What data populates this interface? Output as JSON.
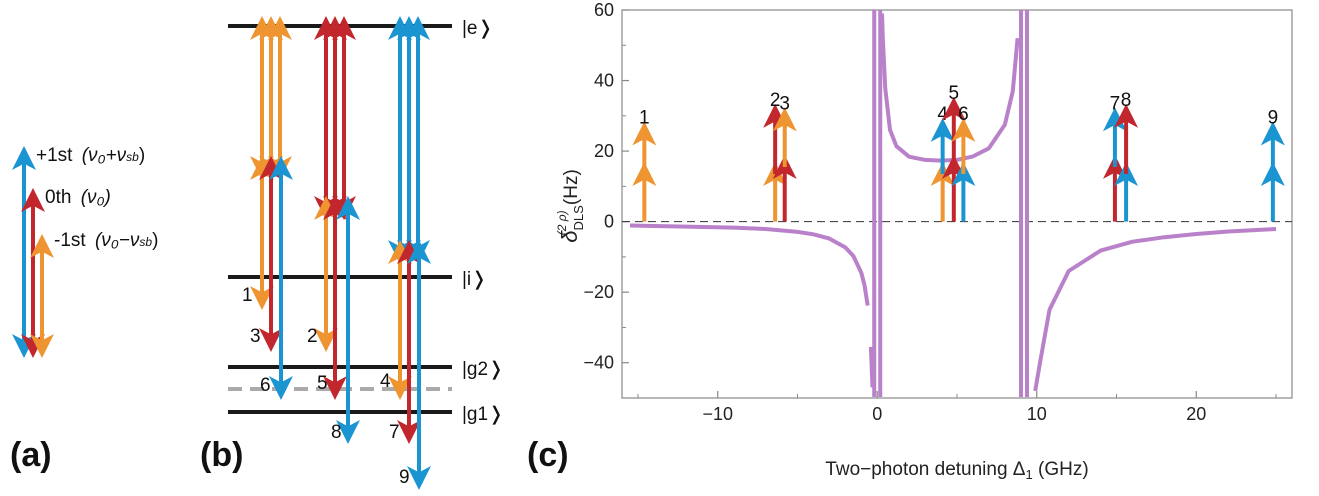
{
  "colors": {
    "orange": "#ee9430",
    "red": "#c1272d",
    "blue": "#1b95d2",
    "purple": "#b981c9",
    "level": "#1a1a1a",
    "dashed": "#aaaaaa"
  },
  "panel_a": {
    "label": "(a)",
    "legend": [
      {
        "name": "+1st",
        "formula": "(ν₀+ν",
        "sub": "sb",
        "close": ")",
        "color": "blue"
      },
      {
        "name": "0th",
        "formula": "(ν₀)",
        "sub": "",
        "close": "",
        "color": "red"
      },
      {
        "name": "-1st",
        "formula": "(ν₀−ν",
        "sub": "sb",
        "close": ")",
        "color": "orange"
      }
    ]
  },
  "panel_b": {
    "label": "(b)",
    "levels": {
      "e": "|e❭",
      "i": "|i❭",
      "g2": "|g2❭",
      "g1": "|g1❭"
    },
    "numbers": [
      "1",
      "2",
      "3",
      "4",
      "5",
      "6",
      "7",
      "8",
      "9"
    ]
  },
  "panel_c": {
    "label": "(c)"
  },
  "chart_data": {
    "type": "line",
    "xlabel": "Two−photon detuning Δ",
    "xlabel_sub": "1",
    "xlabel_unit": " (GHz)",
    "ylabel_main": "δ",
    "ylabel_sub": "DLS",
    "ylabel_sup": "(2 ρ)",
    "ylabel_unit": " (Hz)",
    "xlim": [
      -16,
      26
    ],
    "ylim": [
      -50,
      60
    ],
    "xticks": [
      -10,
      0,
      10,
      20
    ],
    "yticks": [
      -40,
      -20,
      0,
      20,
      40,
      60
    ],
    "resonances": [
      0,
      9.2
    ],
    "series": [
      {
        "color": "purple",
        "x": [
          -15.5,
          -12,
          -9,
          -7,
          -5,
          -4,
          -3,
          -2,
          -1.5,
          -1,
          -0.8,
          -0.6
        ],
        "y": [
          -1.1,
          -1.4,
          -1.7,
          -2.1,
          -2.9,
          -3.6,
          -4.8,
          -7.3,
          -9.7,
          -14.5,
          -18.0,
          -23.8
        ]
      },
      {
        "color": "purple",
        "x": [
          -0.4,
          -0.3
        ],
        "y": [
          -35.5,
          -47
        ]
      },
      {
        "color": "purple",
        "x": [
          0.3,
          0.35,
          0.5,
          0.8,
          1.2,
          2,
          3,
          4,
          5,
          6,
          7,
          8,
          8.5,
          8.8
        ],
        "y": [
          59,
          52,
          38,
          26,
          21.4,
          18.4,
          17.5,
          17.3,
          17.5,
          18.5,
          20.8,
          27.5,
          37,
          52
        ]
      },
      {
        "color": "purple",
        "x": [
          9.2,
          9.3
        ]
      },
      {
        "color": "purple",
        "x": [
          9.9,
          10.2,
          10.8,
          12,
          14,
          16,
          18,
          20,
          22,
          25
        ],
        "y": [
          -48,
          -40,
          -25,
          -14,
          -8.2,
          -5.7,
          -4.4,
          -3.5,
          -2.8,
          -2.1
        ]
      }
    ],
    "markers": [
      {
        "label": "1",
        "x": -14.6,
        "colors": [
          "orange",
          "orange"
        ],
        "tops": [
          13.5,
          25
        ]
      },
      {
        "label": "2",
        "x": -6.4,
        "colors": [
          "orange",
          "red"
        ],
        "tops": [
          13.5,
          30
        ]
      },
      {
        "label": "3",
        "x": -5.8,
        "colors": [
          "red",
          "orange"
        ],
        "tops": [
          15.5,
          29
        ]
      },
      {
        "label": "4",
        "x": 4.1,
        "colors": [
          "orange",
          "blue"
        ],
        "tops": [
          13.5,
          26
        ]
      },
      {
        "label": "5",
        "x": 4.8,
        "colors": [
          "red",
          "red"
        ],
        "tops": [
          15.5,
          32
        ]
      },
      {
        "label": "6",
        "x": 5.4,
        "colors": [
          "blue",
          "orange"
        ],
        "tops": [
          13.5,
          26
        ]
      },
      {
        "label": "7",
        "x": 14.9,
        "colors": [
          "red",
          "blue"
        ],
        "tops": [
          15.5,
          29
        ]
      },
      {
        "label": "8",
        "x": 15.6,
        "colors": [
          "blue",
          "red"
        ],
        "tops": [
          13.5,
          30
        ]
      },
      {
        "label": "9",
        "x": 24.8,
        "colors": [
          "blue",
          "blue"
        ],
        "tops": [
          13.5,
          25
        ]
      }
    ]
  }
}
